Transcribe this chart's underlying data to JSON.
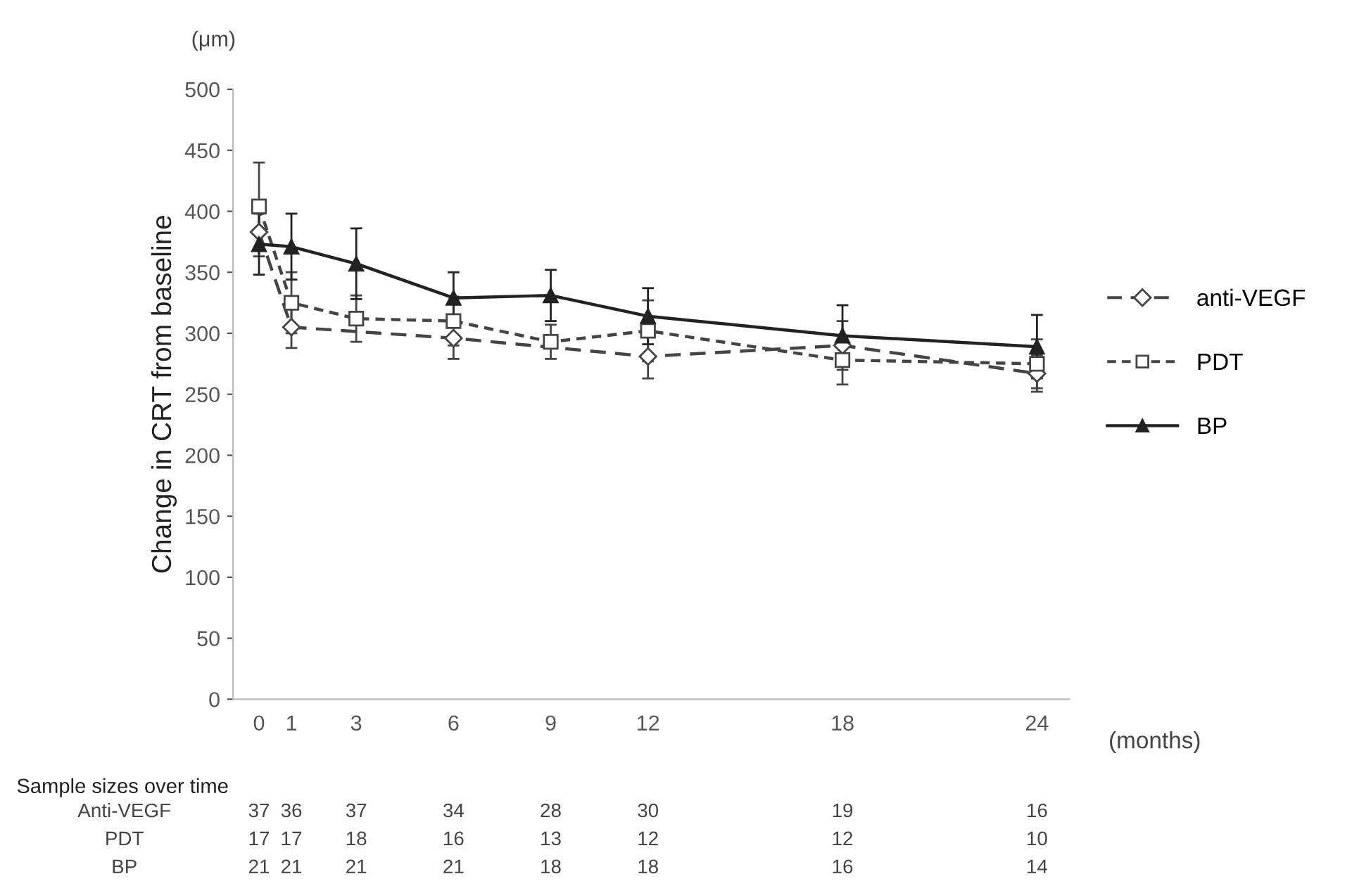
{
  "chart_data": {
    "type": "line",
    "ylabel": "Change in CRT from baseline",
    "xlabel": "(months)",
    "x": [
      0,
      1,
      3,
      6,
      9,
      12,
      18,
      24
    ],
    "xlim": [
      -0.8,
      25
    ],
    "xticks": [
      0,
      1,
      3,
      6,
      9,
      12,
      18,
      24
    ],
    "ylim": [
      0,
      500
    ],
    "yticks": [
      0,
      50,
      100,
      150,
      200,
      250,
      300,
      350,
      400,
      450,
      500
    ],
    "grid": false,
    "legend": "right",
    "series": [
      {
        "name": "anti-VEGF",
        "color": "#444444",
        "marker": "diamond",
        "line_style": "dashed",
        "values": [
          383,
          305,
          null,
          296,
          null,
          281,
          290,
          267
        ],
        "errors": [
          20,
          17,
          null,
          17,
          null,
          18,
          20,
          15
        ]
      },
      {
        "name": "PDT",
        "color": "#444444",
        "marker": "square",
        "line_style": "dotted",
        "values": [
          404,
          325,
          312,
          310,
          293,
          302,
          278,
          275
        ],
        "errors": [
          36,
          25,
          19,
          20,
          14,
          25,
          20,
          20
        ]
      },
      {
        "name": "BP",
        "color": "#222222",
        "marker": "triangle",
        "line_style": "solid",
        "values": [
          373,
          371,
          357,
          329,
          331,
          314,
          298,
          289
        ],
        "errors": [
          25,
          27,
          29,
          21,
          21,
          23,
          25,
          26
        ]
      }
    ],
    "annotations": [
      "(μm)",
      "Sample sizes over time",
      "Anti-VEGF",
      "37",
      "36",
      "37",
      "34",
      "28",
      "30",
      "19",
      "16",
      "PDT",
      "17",
      "17",
      "18",
      "16",
      "13",
      "12",
      "12",
      "10",
      "BP",
      "21",
      "21",
      "21",
      "21",
      "18",
      "18",
      "16",
      "14"
    ]
  }
}
